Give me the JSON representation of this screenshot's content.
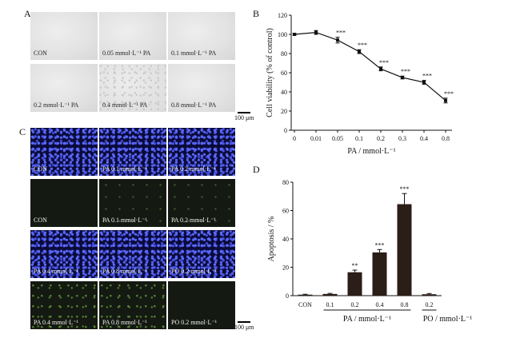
{
  "panel_a": {
    "letter": "A",
    "labels": [
      "CON",
      "0.05 mmol·L⁻¹ PA",
      "0.1 mmol·L⁻¹ PA",
      "0.2 mmol·L⁻¹ PA",
      "0.4 mmol·L⁻¹ PA",
      "0.8 mmol·L⁻¹ PA"
    ],
    "scale": "100 μm"
  },
  "panel_c": {
    "letter": "C",
    "labels": [
      "CON",
      "PA 0.1 mmol·L⁻¹",
      "PA 0.2 mmol·L⁻¹",
      "CON",
      "PA 0.1 mmol·L⁻¹",
      "PA 0.2 mmol·L⁻¹",
      "PA 0.4 mmol·L⁻¹",
      "PA 0.8 mmol·L⁻¹",
      "PO 0.2 mmol·L⁻¹",
      "PA 0.4 mmol·L⁻¹",
      "PA 0.8 mmol·L⁻¹",
      "PO 0.2 mmol·L⁻¹"
    ],
    "scale": "100 μm"
  },
  "chart_data": [
    {
      "panel": "B",
      "type": "line",
      "x": [
        "0",
        "0.01",
        "0.05",
        "0.1",
        "0.2",
        "0.3",
        "0.4",
        "0.8"
      ],
      "y": [
        100,
        102,
        94,
        82,
        64,
        55,
        50,
        31
      ],
      "error": [
        1,
        2,
        3,
        2,
        2,
        1.5,
        2,
        2.5
      ],
      "significance": [
        "",
        "",
        "***",
        "***",
        "***",
        "***",
        "***",
        "***"
      ],
      "xlabel": "PA / mmol·L⁻¹",
      "ylabel": "Cell viability (% of control)",
      "ylim": [
        0,
        120
      ],
      "yticks": [
        0,
        20,
        40,
        60,
        80,
        100,
        120
      ]
    },
    {
      "panel": "D",
      "type": "bar",
      "categories": [
        "CON",
        "0.1",
        "0.2",
        "0.4",
        "0.8",
        "0.2"
      ],
      "values": [
        0.7,
        1.2,
        16.5,
        30.5,
        64.5,
        1.0
      ],
      "error": [
        0.3,
        0.4,
        1.5,
        2.0,
        7.5,
        0.5
      ],
      "significance": [
        "",
        "",
        "**",
        "***",
        "***",
        ""
      ],
      "group_labels": [
        "PA / mmol·L⁻¹",
        "PO / mmol·L⁻¹"
      ],
      "ylabel": "Apoptosis / %",
      "ylim": [
        0,
        80
      ],
      "yticks": [
        0,
        20,
        40,
        60,
        80
      ]
    }
  ]
}
